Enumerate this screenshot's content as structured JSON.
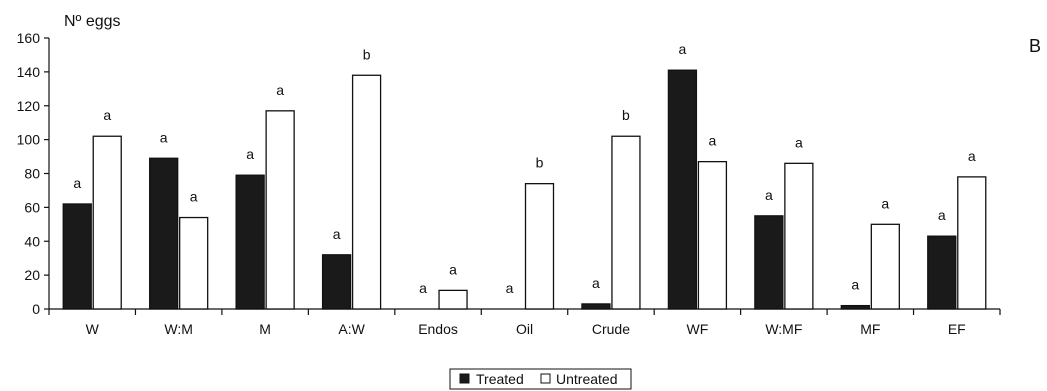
{
  "chart_data": {
    "type": "bar",
    "ylabel": "Nº eggs",
    "panel_label": "B",
    "ylim": [
      0,
      160
    ],
    "yticks": [
      0,
      20,
      40,
      60,
      80,
      100,
      120,
      140,
      160
    ],
    "grid": false,
    "legend_position": "bottom-center",
    "categories": [
      "W",
      "W:M",
      "M",
      "A:W",
      "Endos",
      "Oil",
      "Crude",
      "WF",
      "W:MF",
      "MF",
      "EF"
    ],
    "series": [
      {
        "name": "Treated",
        "color": "#1a1a1a",
        "values": [
          62,
          89,
          79,
          32,
          0,
          0,
          3,
          141,
          55,
          2,
          43
        ],
        "significance": [
          "a",
          "a",
          "a",
          "a",
          "a",
          "a",
          "a",
          "a",
          "a",
          "a",
          "a"
        ]
      },
      {
        "name": "Untreated",
        "color": "#ffffff",
        "values": [
          102,
          54,
          117,
          138,
          11,
          74,
          102,
          87,
          86,
          50,
          78
        ],
        "significance": [
          "a",
          "a",
          "a",
          "b",
          "a",
          "b",
          "b",
          "a",
          "a",
          "a",
          "a"
        ]
      }
    ]
  }
}
